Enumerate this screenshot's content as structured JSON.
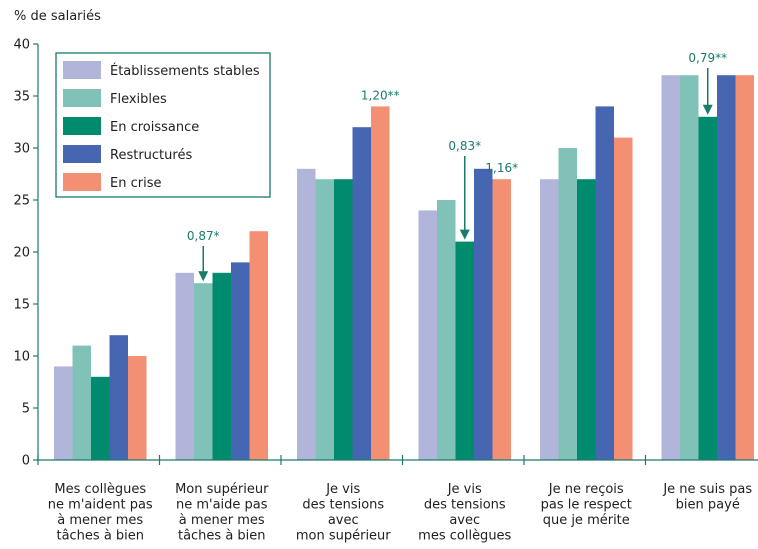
{
  "chart_data": {
    "type": "bar",
    "ylabel": "% de salariés",
    "ylim": [
      0,
      40
    ],
    "yticks": [
      0,
      5,
      10,
      15,
      20,
      25,
      30,
      35,
      40
    ],
    "grid": false,
    "legend_position": "top-left",
    "categories": [
      [
        "Mes collègues",
        "ne m'aident pas",
        "à mener mes",
        "tâches à bien"
      ],
      [
        "Mon supérieur",
        "ne m'aide pas",
        "à mener mes",
        "tâches à bien"
      ],
      [
        "Je vis",
        "des tensions",
        "avec",
        "mon supérieur"
      ],
      [
        "Je vis",
        "des tensions",
        "avec",
        "mes collègues"
      ],
      [
        "Je ne reçois",
        "pas le respect",
        "que je mérite"
      ],
      [
        "Je ne suis pas",
        "bien payé"
      ]
    ],
    "series": [
      {
        "name": "Établissements stables",
        "color": "#b0b5d9",
        "values": [
          9,
          18,
          28,
          24,
          27,
          37
        ]
      },
      {
        "name": "Flexibles",
        "color": "#80c2b8",
        "values": [
          11,
          17,
          27,
          25,
          30,
          37
        ]
      },
      {
        "name": "En croissance",
        "color": "#008a6e",
        "values": [
          8,
          18,
          27,
          21,
          27,
          33
        ]
      },
      {
        "name": "Restructurés",
        "color": "#4666b1",
        "values": [
          12,
          19,
          32,
          28,
          34,
          37
        ]
      },
      {
        "name": "En crise",
        "color": "#f38f73",
        "values": [
          10,
          22,
          34,
          27,
          31,
          37
        ]
      }
    ],
    "annotations": [
      {
        "text": "0,87*",
        "category": 1,
        "series": 1,
        "arrow": true
      },
      {
        "text": "1,20**",
        "category": 2,
        "series": 4,
        "arrow": false
      },
      {
        "text": "0,83*",
        "category": 3,
        "series": 2,
        "arrow": true
      },
      {
        "text": "1,16*",
        "category": 3,
        "series": 4,
        "arrow": false
      },
      {
        "text": "0,79**",
        "category": 5,
        "series": 2,
        "arrow": true
      }
    ],
    "legend_border_color": "#1a7a6b",
    "annotation_color": "#1a7a6b"
  }
}
